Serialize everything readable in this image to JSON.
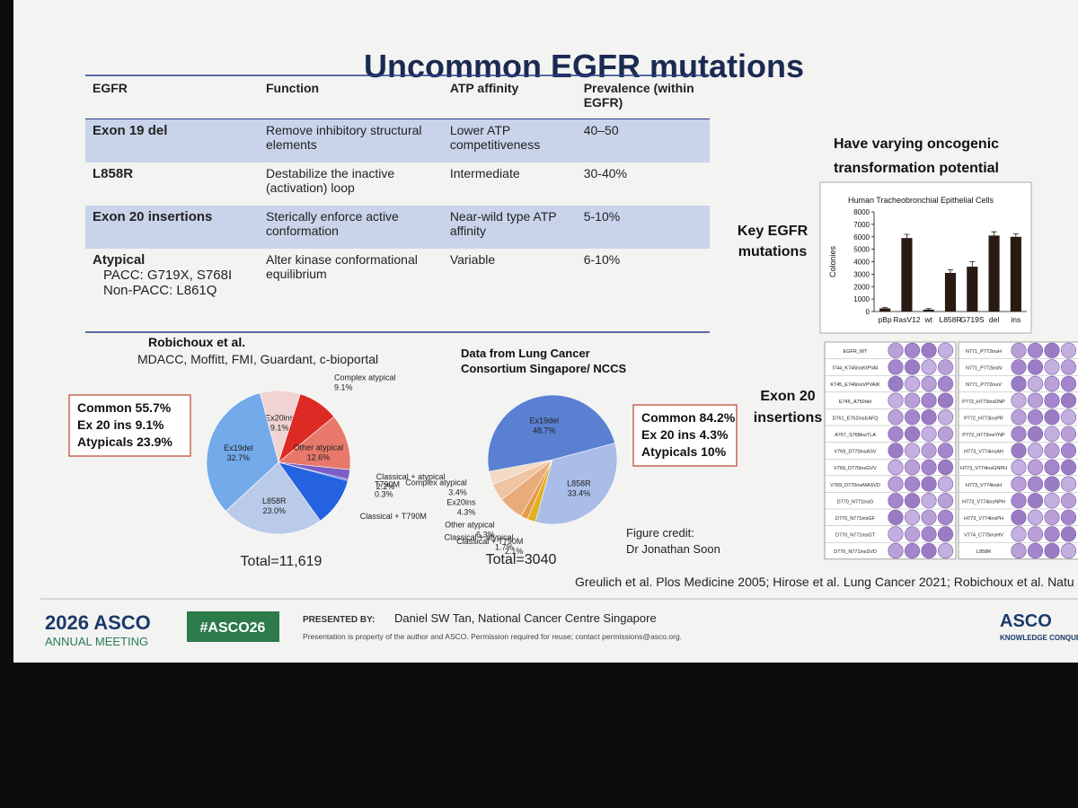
{
  "slide": {
    "title": "Uncommon EGFR mutations",
    "table": {
      "header": [
        "EGFR",
        "Function",
        "ATP affinity",
        "Prevalence (within EGFR)"
      ],
      "rows": [
        [
          "Exon 19 del",
          "Remove inhibitory structural elements",
          "Lower ATP competitiveness",
          "40–50"
        ],
        [
          "L858R",
          "Destabilize the inactive (activation) loop",
          "Intermediate",
          "30-40%"
        ],
        [
          "Exon 20 insertions",
          "Sterically enforce active conformation",
          "Near-wild type ATP affinity",
          "5-10%"
        ],
        [
          [
            "Atypical",
            "PACC: G719X, S768I",
            "Non-PACC: L861Q"
          ],
          "Alter kinase conformational equilibrium",
          "Variable",
          "6-10%"
        ]
      ]
    },
    "right_heading": [
      "Have varying oncogenic",
      "transformation potential"
    ],
    "key_label": [
      "Key EGFR",
      "mutations"
    ],
    "exon20_label": [
      "Exon 20",
      "insertions"
    ],
    "plates_left": [
      "EGFR_WT",
      "I744_K745insKIPVAI",
      "K745_E746insVPVAIK",
      "E746_A750del",
      "D761_E762insEAFQ",
      "A767_S768insTLA",
      "V769_D770insASV",
      "V769_D770insGVV",
      "V769_D770insMASVD",
      "D770_N771insG",
      "D770_N771insGF",
      "D770_N771insGT",
      "D770_N771insSVD"
    ],
    "plates_right": [
      "N771_P772insH",
      "N771_P772insN",
      "N771_P772insV",
      "P772_H773insDNP",
      "P772_H773insPR",
      "P772_H773insYNP",
      "H773_V774insAH",
      "H773_V774insGNPH",
      "H773_V774insH",
      "H773_V774insNPH",
      "H773_V774insPH",
      "V774_C775insHV",
      "L858R"
    ],
    "figure_credit": [
      "Figure credit:",
      "Dr Jonathan Soon"
    ],
    "references": "Greulich et al. Plos Medicine 2005; Hirose et al. Lung Cancer 2021; Robichoux et al. Natu",
    "footer": {
      "year_brand": "2026 ASCO",
      "meeting": "ANNUAL MEETING",
      "hashtag": "#ASCO26",
      "presented_by": "PRESENTED BY:",
      "presenter": "Daniel SW Tan, National Cancer Centre Singapore",
      "notice": "Presentation is property of the author and ASCO. Permission required for reuse; contact permissions@asco.org.",
      "brand": "ASCO",
      "tagline": "KNOWLEDGE CONQUER"
    }
  },
  "chart_data": [
    {
      "type": "pie",
      "title": "Robichoux et al.",
      "subtitle": "MDACC, Moffitt, FMI, Guardant, c-bioportal",
      "annotations": [
        "Common 55.7%",
        "Ex 20 ins 9.1%",
        "Atypicals 23.9%"
      ],
      "footnote": "Total=11,619",
      "categories": [
        "Ex20ins",
        "Complex atypical",
        "Other atypical",
        "Classical + atypical",
        "T790M",
        "Classical + T790M",
        "L858R",
        "Ex19del"
      ],
      "values": [
        9.1,
        9.1,
        12.6,
        2.2,
        0.3,
        11.0,
        23.0,
        32.7
      ],
      "value_labels": [
        "9.1%",
        "9.1%",
        "12.6%",
        "2.2%",
        "0.3%",
        null,
        "23.0%",
        "32.7%"
      ],
      "colors": [
        "#f0d4d4",
        "#dd2a24",
        "#e8786a",
        "#7a5ec8",
        "#1c3fa8",
        "#2462e0",
        "#b9cbe8",
        "#72aaea"
      ]
    },
    {
      "type": "pie",
      "title": "Data from Lung Cancer Consortium Singapore/ NCCS",
      "annotations": [
        "Common 84.2%",
        "Ex 20 ins 4.3%",
        "Atypicals 10%"
      ],
      "footnote": "Total=3040",
      "categories": [
        "L858R",
        "Classical + T790M",
        "Classical + atypical",
        "Other atypical",
        "Ex20ins",
        "Complex atypical",
        "Ex19del"
      ],
      "values": [
        33.4,
        2.1,
        1.7,
        6.3,
        4.3,
        3.4,
        48.7
      ],
      "value_labels": [
        "33.4%",
        "2.1%",
        "1.7%",
        "6.3%",
        "4.3%",
        "3.4%",
        "48.7%"
      ],
      "colors": [
        "#a9bde8",
        "#e0b020",
        "#e29a48",
        "#e8ab7a",
        "#efc4a2",
        "#f3dac6",
        "#5a80d2"
      ]
    },
    {
      "type": "bar",
      "title": "Human Tracheobronchial Epithelial Cells",
      "y_label": "Colonies",
      "categories": [
        "pBp",
        "RasV12",
        "wt",
        "L858R",
        "G719S",
        "del",
        "ins"
      ],
      "values": [
        250,
        5900,
        150,
        3100,
        3600,
        6100,
        6000
      ],
      "errors": [
        60,
        300,
        80,
        250,
        400,
        300,
        250
      ],
      "color": "#2a1a14",
      "ylim": [
        0,
        8000
      ],
      "yticks": [
        0,
        1000,
        2000,
        3000,
        4000,
        5000,
        6000,
        7000,
        8000
      ]
    }
  ]
}
